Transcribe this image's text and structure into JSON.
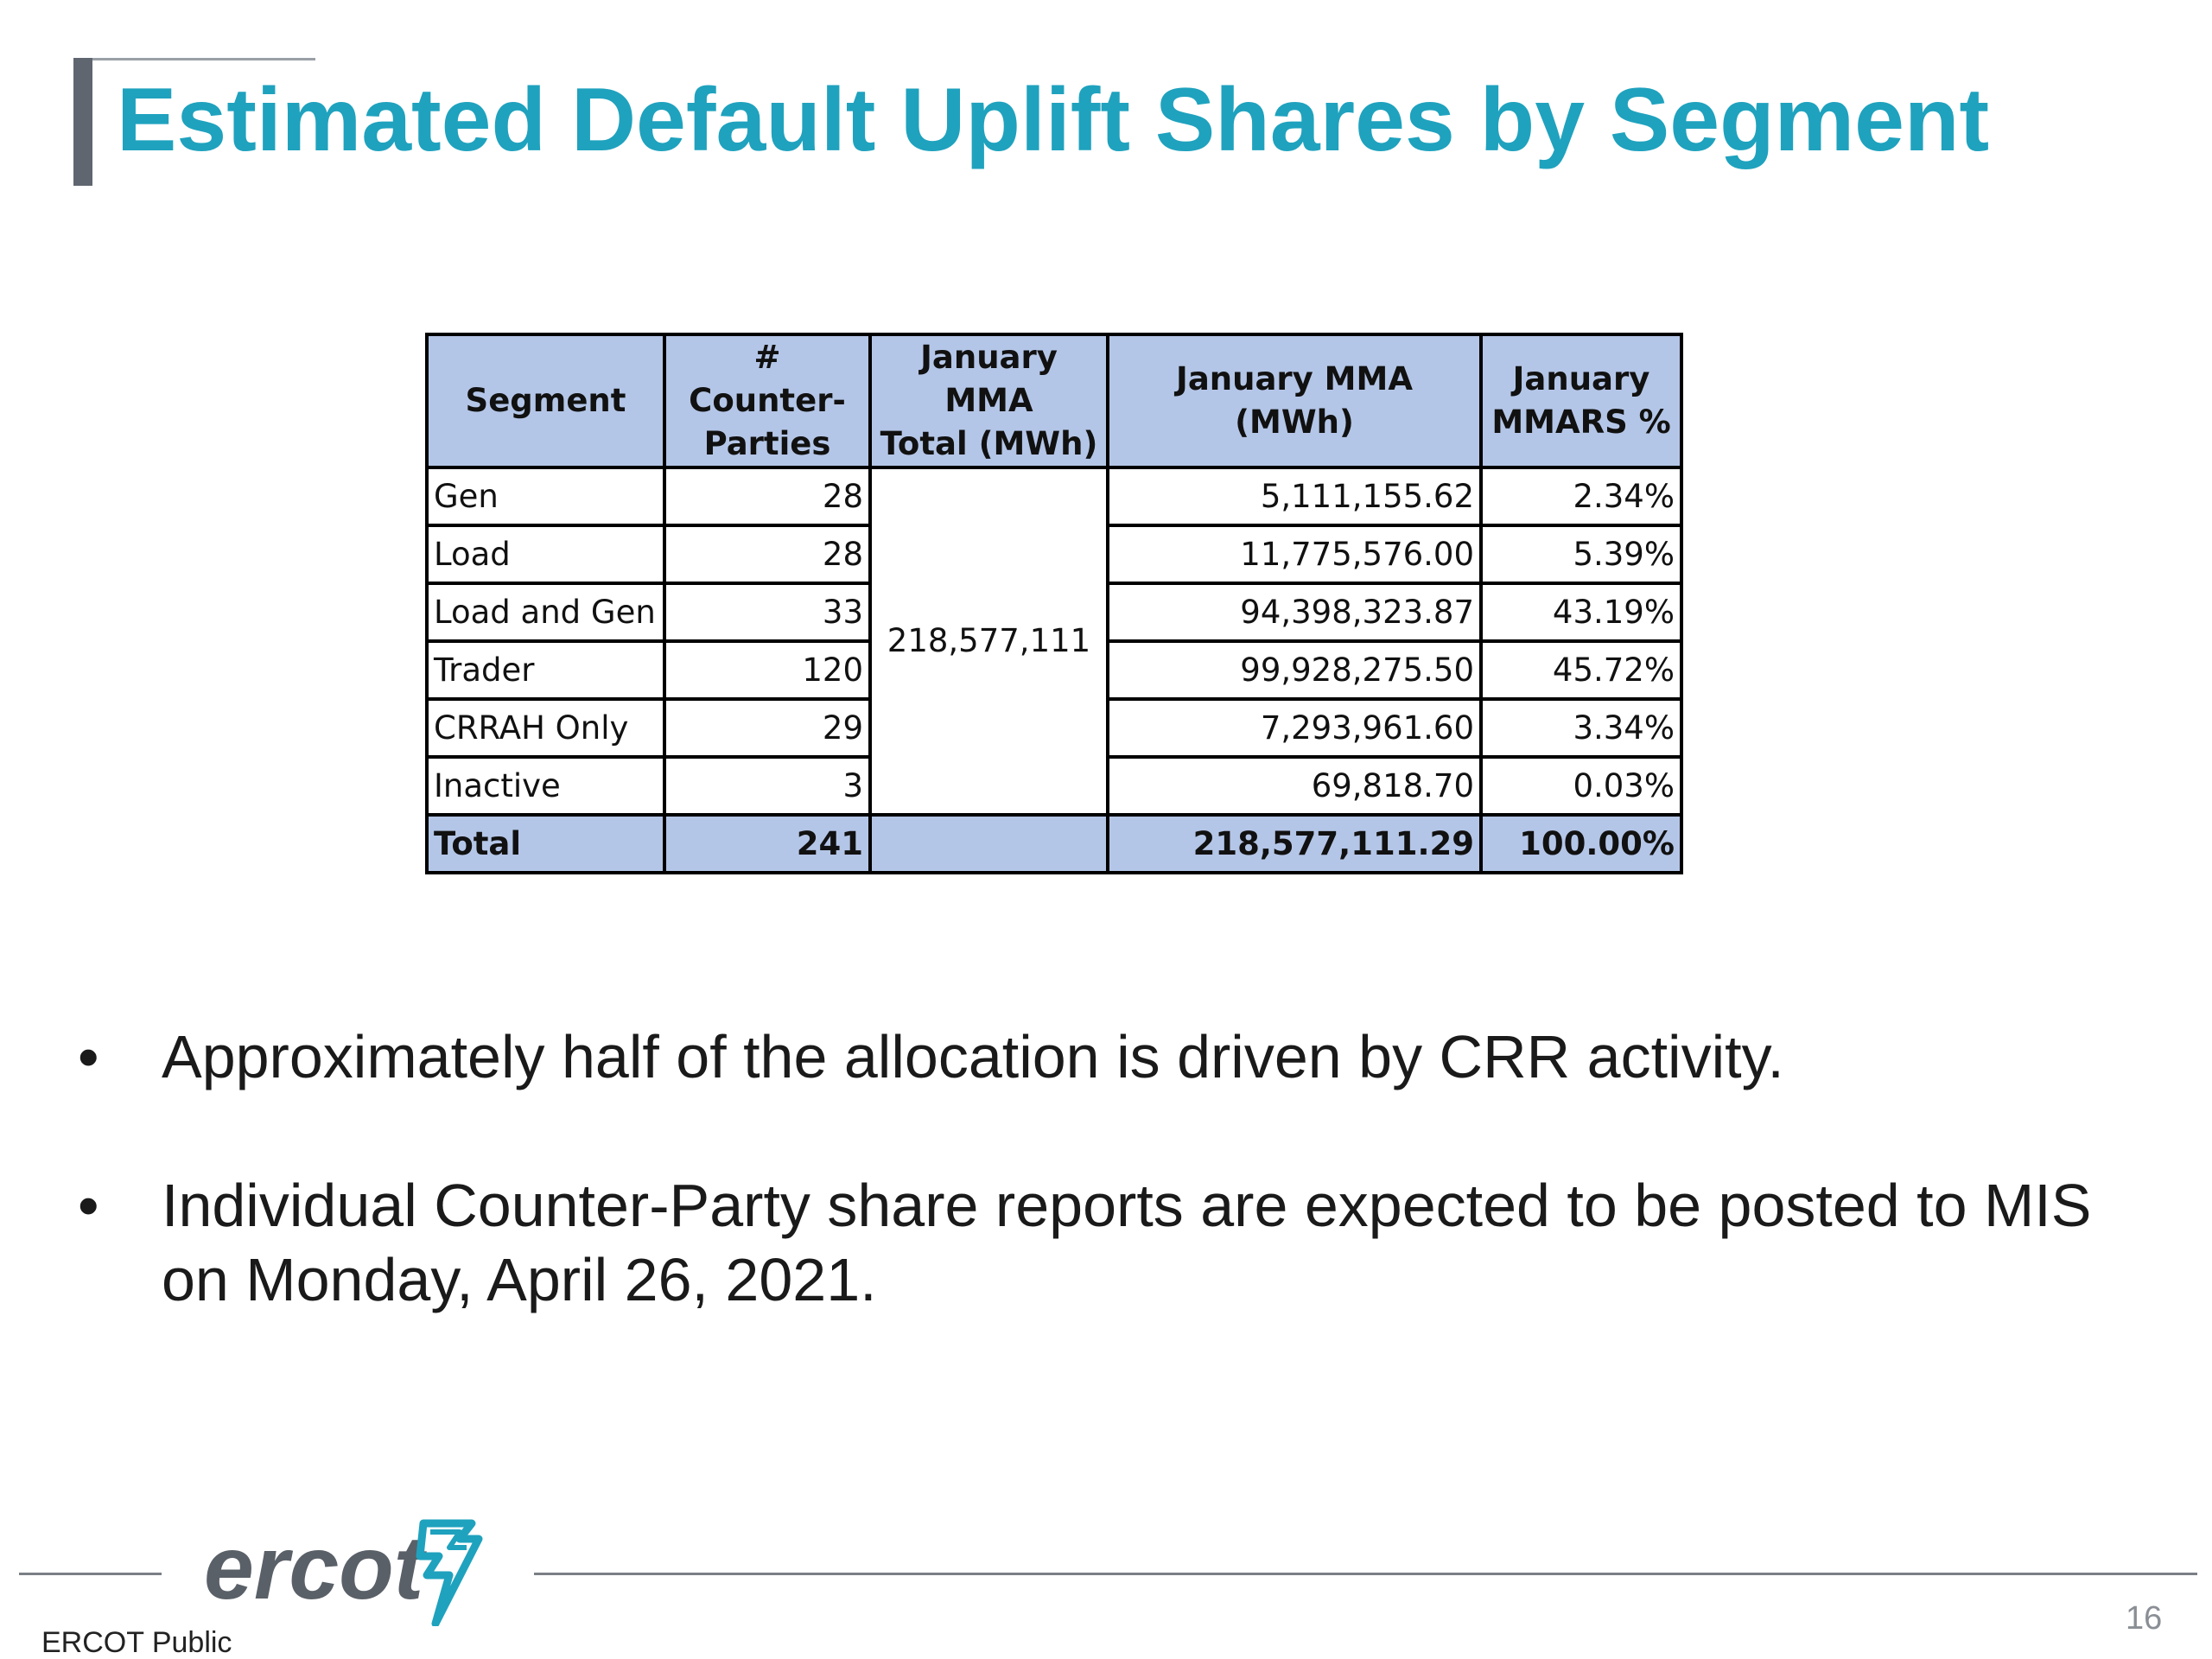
{
  "slide": {
    "title": "Estimated Default Uplift Shares by Segment",
    "page_number": "16",
    "footer_label": "ERCOT Public",
    "logo_text": "ercot",
    "accent_color": "#1fa2be"
  },
  "table": {
    "headers": {
      "segment": "Segment",
      "counterparties_line1": "# Counter-",
      "counterparties_line2": "Parties",
      "mma_total_line1": "January MMA",
      "mma_total_line2": "Total (MWh)",
      "mma": "January MMA (MWh)",
      "mmars_line1": "January",
      "mmars_line2": "MMARS %"
    },
    "merged_total": "218,577,111",
    "rows": [
      {
        "segment": "Gen",
        "counterparties": "28",
        "mma": "5,111,155.62",
        "mmars": "2.34%"
      },
      {
        "segment": "Load",
        "counterparties": "28",
        "mma": "11,775,576.00",
        "mmars": "5.39%"
      },
      {
        "segment": "Load and Gen",
        "counterparties": "33",
        "mma": "94,398,323.87",
        "mmars": "43.19%"
      },
      {
        "segment": "Trader",
        "counterparties": "120",
        "mma": "99,928,275.50",
        "mmars": "45.72%"
      },
      {
        "segment": "CRRAH Only",
        "counterparties": "29",
        "mma": "7,293,961.60",
        "mmars": "3.34%"
      },
      {
        "segment": "Inactive",
        "counterparties": "3",
        "mma": "69,818.70",
        "mmars": "0.03%"
      }
    ],
    "total": {
      "segment": "Total",
      "counterparties": "241",
      "mma_total": "",
      "mma": "218,577,111.29",
      "mmars": "100.00%"
    }
  },
  "bullets": [
    {
      "symbol": "•",
      "text": "Approximately half of the allocation is driven by CRR activity."
    },
    {
      "symbol": "•",
      "text": "Individual Counter-Party share reports are expected to be posted to MIS on Monday, April 26, 2021."
    }
  ]
}
